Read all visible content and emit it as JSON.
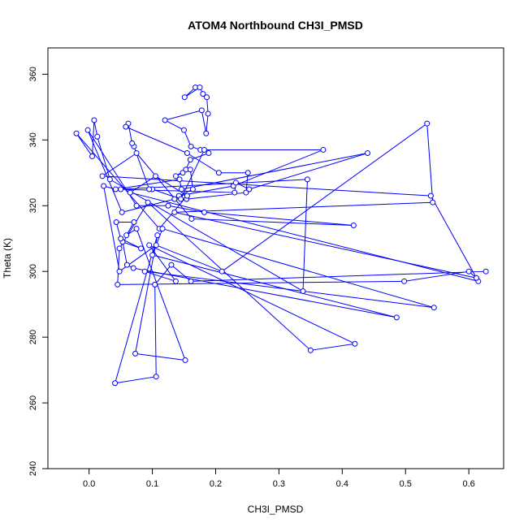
{
  "chart_data": {
    "type": "line",
    "title": "ATOM4 Northbound CH3I_PMSD",
    "xlabel": "CH3I_PMSD",
    "ylabel": "Theta (K)",
    "xlim": [
      -0.065,
      0.655
    ],
    "ylim": [
      240,
      368
    ],
    "xticks": [
      0.0,
      0.1,
      0.2,
      0.3,
      0.4,
      0.5,
      0.6
    ],
    "xtick_labels": [
      "0.0",
      "0.1",
      "0.2",
      "0.3",
      "0.4",
      "0.5",
      "0.6"
    ],
    "yticks": [
      240,
      260,
      280,
      300,
      320,
      340,
      360
    ],
    "ytick_labels": [
      "240",
      "260",
      "280",
      "300",
      "320",
      "340",
      "360"
    ],
    "grid": false,
    "markers": "open-circle",
    "series_color": "#0000ff",
    "series": [
      {
        "x": [
          0.168,
          0.151,
          0.175,
          0.18,
          0.186,
          0.188,
          0.185,
          0.178,
          0.12,
          0.15,
          0.161,
          0.176,
          0.189,
          0.16,
          0.153,
          0.137,
          0.148,
          0.16,
          0.164,
          0.142,
          0.228,
          0.37,
          0.182,
          0.145,
          0.1,
          0.095,
          0.071,
          0.068,
          0.062,
          0.058,
          0.155,
          0.205,
          0.251,
          0.248,
          0.154,
          0.135,
          0.052,
          -0.002,
          0.075,
          0.125,
          0.182,
          0.418,
          0.162,
          0.075,
          0.021,
          0.54,
          0.615,
          0.065,
          0.105,
          0.155,
          0.111,
          -0.02,
          0.005,
          0.008,
          0.013,
          0.033,
          0.338,
          0.345,
          0.05,
          0.23,
          0.232,
          0.253,
          0.44,
          0.146,
          0.143,
          0.042,
          0.023,
          0.048,
          0.106,
          0.21,
          0.534,
          0.543,
          0.135,
          0.612,
          0.6,
          0.498,
          0.045,
          0.048,
          0.093,
          0.35,
          0.42,
          0.095,
          0.137,
          0.088,
          0.545,
          0.116,
          0.1,
          0.486,
          0.07,
          0.06,
          0.053,
          0.082,
          0.05,
          0.043,
          0.071,
          0.059,
          0.075,
          0.152,
          0.073,
          0.108,
          0.041,
          0.106,
          0.104,
          0.13,
          0.161,
          0.627
        ],
        "y": [
          356,
          353,
          356,
          354,
          353,
          348,
          342,
          349,
          346,
          343,
          338,
          337,
          336,
          334,
          331,
          329,
          330,
          331,
          325,
          323,
          326,
          337,
          337,
          322,
          325,
          325,
          338,
          339,
          345,
          344,
          336,
          330,
          330,
          324,
          322,
          322,
          318,
          343,
          320,
          320,
          318,
          314,
          316,
          336,
          329,
          323,
          297,
          324,
          329,
          323,
          313,
          342,
          335,
          346,
          341,
          328,
          294,
          328,
          325,
          324,
          327,
          325,
          336,
          325,
          328,
          325,
          326,
          300,
          308,
          300,
          345,
          321,
          318,
          298,
          300,
          297,
          296,
          307,
          321,
          276,
          278,
          308,
          297,
          300,
          289,
          313,
          305,
          286,
          301,
          302,
          309,
          307,
          310,
          315,
          315,
          311,
          313,
          273,
          275,
          311,
          266,
          268,
          296,
          302,
          297,
          300
        ]
      }
    ]
  }
}
